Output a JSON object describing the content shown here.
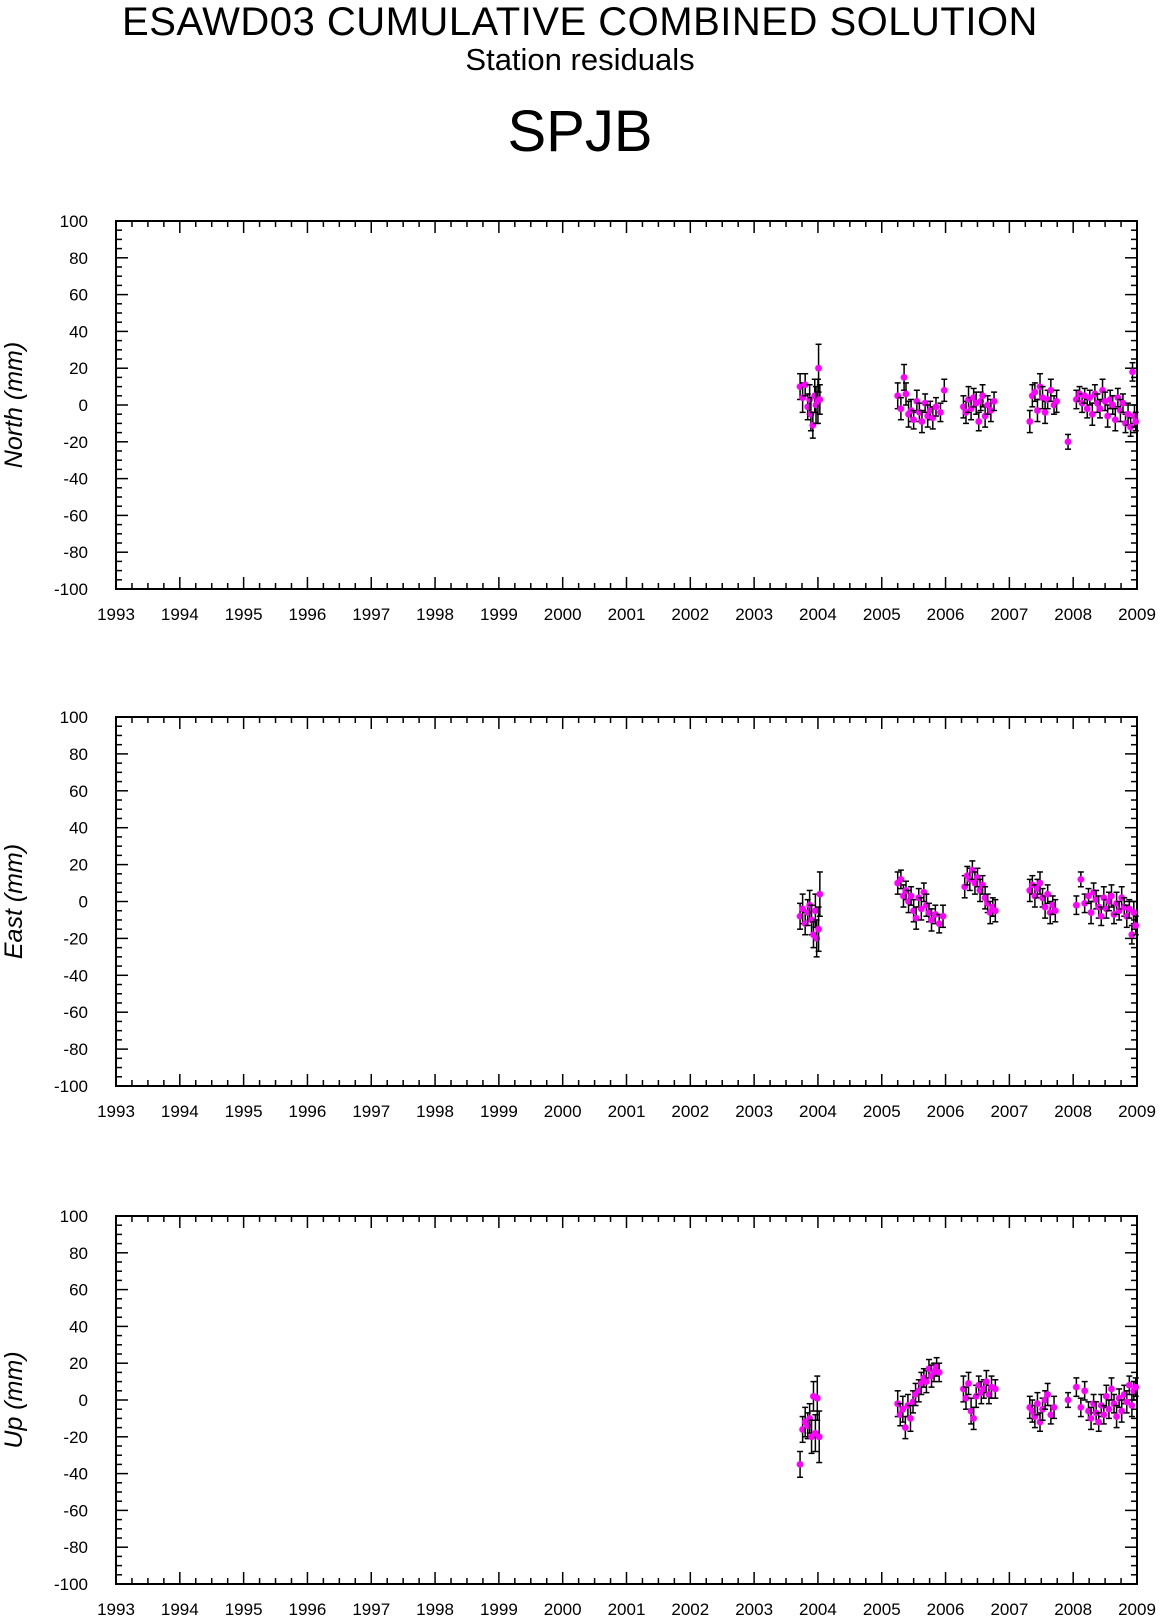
{
  "figure": {
    "title": "ESAWD03 CUMULATIVE COMBINED SOLUTION",
    "subtitle": "Station residuals",
    "station": "SPJB"
  },
  "colors": {
    "marker": "#ff00ff",
    "errorbar": "#000000",
    "axis": "#000000",
    "background": "#ffffff"
  },
  "chart_data": [
    {
      "type": "scatter",
      "name": "north",
      "ylabel": "North (mm)",
      "xlim": [
        1993,
        2009
      ],
      "ylim": [
        -100,
        100
      ],
      "x_ticks": [
        "1993",
        "1994",
        "1995",
        "1996",
        "1997",
        "1998",
        "1999",
        "2000",
        "2001",
        "2002",
        "2003",
        "2004",
        "2005",
        "2006",
        "2007",
        "2008",
        "2009"
      ],
      "y_ticks": [
        "100",
        "80",
        "60",
        "40",
        "20",
        "0",
        "-20",
        "-40",
        "-60",
        "-80",
        "-100"
      ],
      "grid": false,
      "error_bars": true,
      "points": [
        [
          2003.72,
          10,
          7
        ],
        [
          2003.76,
          4,
          8
        ],
        [
          2003.8,
          11,
          6
        ],
        [
          2003.84,
          -1,
          7
        ],
        [
          2003.87,
          3,
          8
        ],
        [
          2003.89,
          -5,
          9
        ],
        [
          2003.92,
          -11,
          7
        ],
        [
          2003.95,
          5,
          9
        ],
        [
          2003.97,
          0,
          10
        ],
        [
          2004.0,
          2,
          12
        ],
        [
          2004.01,
          20,
          13
        ],
        [
          2004.03,
          3,
          8
        ],
        [
          2005.25,
          5,
          7
        ],
        [
          2005.3,
          -2,
          6
        ],
        [
          2005.35,
          15,
          7
        ],
        [
          2005.38,
          6,
          6
        ],
        [
          2005.42,
          -5,
          7
        ],
        [
          2005.46,
          -3,
          6
        ],
        [
          2005.5,
          -8,
          5
        ],
        [
          2005.55,
          2,
          6
        ],
        [
          2005.59,
          -4,
          5
        ],
        [
          2005.63,
          -9,
          6
        ],
        [
          2005.68,
          1,
          5
        ],
        [
          2005.72,
          -6,
          6
        ],
        [
          2005.76,
          -3,
          5
        ],
        [
          2005.8,
          -7,
          6
        ],
        [
          2005.85,
          -1,
          5
        ],
        [
          2005.92,
          -4,
          5
        ],
        [
          2005.98,
          8,
          6
        ],
        [
          2006.28,
          -1,
          6
        ],
        [
          2006.32,
          -4,
          6
        ],
        [
          2006.36,
          3,
          7
        ],
        [
          2006.4,
          -2,
          6
        ],
        [
          2006.44,
          4,
          5
        ],
        [
          2006.48,
          1,
          6
        ],
        [
          2006.52,
          -9,
          5
        ],
        [
          2006.55,
          2,
          5
        ],
        [
          2006.58,
          5,
          6
        ],
        [
          2006.62,
          -6,
          6
        ],
        [
          2006.66,
          0,
          5
        ],
        [
          2006.71,
          -3,
          6
        ],
        [
          2006.76,
          2,
          5
        ],
        [
          2007.32,
          -9,
          6
        ],
        [
          2007.36,
          5,
          6
        ],
        [
          2007.4,
          7,
          5
        ],
        [
          2007.44,
          -3,
          6
        ],
        [
          2007.48,
          10,
          7
        ],
        [
          2007.52,
          4,
          6
        ],
        [
          2007.56,
          -4,
          6
        ],
        [
          2007.6,
          3,
          5
        ],
        [
          2007.65,
          8,
          6
        ],
        [
          2007.7,
          0,
          5
        ],
        [
          2007.74,
          2,
          6
        ],
        [
          2007.92,
          -20,
          4
        ],
        [
          2008.05,
          3,
          5
        ],
        [
          2008.1,
          6,
          4
        ],
        [
          2008.14,
          1,
          5
        ],
        [
          2008.18,
          5,
          4
        ],
        [
          2008.22,
          -2,
          5
        ],
        [
          2008.26,
          4,
          4
        ],
        [
          2008.3,
          -5,
          6
        ],
        [
          2008.34,
          6,
          5
        ],
        [
          2008.38,
          1,
          5
        ],
        [
          2008.42,
          -2,
          5
        ],
        [
          2008.46,
          8,
          6
        ],
        [
          2008.5,
          2,
          5
        ],
        [
          2008.54,
          -6,
          6
        ],
        [
          2008.58,
          3,
          5
        ],
        [
          2008.62,
          0,
          5
        ],
        [
          2008.66,
          -8,
          6
        ],
        [
          2008.7,
          4,
          5
        ],
        [
          2008.74,
          -3,
          6
        ],
        [
          2008.78,
          1,
          5
        ],
        [
          2008.82,
          -10,
          5
        ],
        [
          2008.86,
          -5,
          6
        ],
        [
          2008.9,
          -12,
          5
        ],
        [
          2008.93,
          18,
          5
        ],
        [
          2008.96,
          -6,
          6
        ],
        [
          2008.98,
          -9,
          5
        ]
      ]
    },
    {
      "type": "scatter",
      "name": "east",
      "ylabel": "East (mm)",
      "xlim": [
        1993,
        2009
      ],
      "ylim": [
        -100,
        100
      ],
      "x_ticks": [
        "1993",
        "1994",
        "1995",
        "1996",
        "1997",
        "1998",
        "1999",
        "2000",
        "2001",
        "2002",
        "2003",
        "2004",
        "2005",
        "2006",
        "2007",
        "2008",
        "2009"
      ],
      "y_ticks": [
        "100",
        "80",
        "60",
        "40",
        "20",
        "0",
        "-20",
        "-40",
        "-60",
        "-80",
        "-100"
      ],
      "grid": false,
      "error_bars": true,
      "points": [
        [
          2003.72,
          -8,
          7
        ],
        [
          2003.76,
          -4,
          8
        ],
        [
          2003.8,
          -12,
          6
        ],
        [
          2003.84,
          -6,
          7
        ],
        [
          2003.87,
          -2,
          8
        ],
        [
          2003.9,
          -10,
          8
        ],
        [
          2003.93,
          -18,
          7
        ],
        [
          2003.96,
          -5,
          9
        ],
        [
          2003.98,
          -20,
          10
        ],
        [
          2004.01,
          -15,
          12
        ],
        [
          2004.03,
          4,
          12
        ],
        [
          2005.25,
          10,
          6
        ],
        [
          2005.3,
          12,
          5
        ],
        [
          2005.34,
          3,
          6
        ],
        [
          2005.38,
          6,
          5
        ],
        [
          2005.42,
          0,
          6
        ],
        [
          2005.46,
          3,
          5
        ],
        [
          2005.5,
          -5,
          6
        ],
        [
          2005.54,
          -9,
          6
        ],
        [
          2005.58,
          2,
          5
        ],
        [
          2005.62,
          -4,
          6
        ],
        [
          2005.66,
          5,
          5
        ],
        [
          2005.7,
          -2,
          6
        ],
        [
          2005.74,
          -6,
          5
        ],
        [
          2005.78,
          -10,
          6
        ],
        [
          2005.84,
          -7,
          5
        ],
        [
          2005.9,
          -12,
          5
        ],
        [
          2005.96,
          -8,
          6
        ],
        [
          2006.3,
          8,
          6
        ],
        [
          2006.34,
          14,
          5
        ],
        [
          2006.38,
          12,
          6
        ],
        [
          2006.42,
          17,
          5
        ],
        [
          2006.46,
          10,
          6
        ],
        [
          2006.5,
          13,
          5
        ],
        [
          2006.54,
          6,
          6
        ],
        [
          2006.58,
          9,
          5
        ],
        [
          2006.62,
          2,
          6
        ],
        [
          2006.66,
          -1,
          5
        ],
        [
          2006.7,
          -6,
          6
        ],
        [
          2006.74,
          -3,
          5
        ],
        [
          2006.78,
          -5,
          6
        ],
        [
          2007.32,
          6,
          6
        ],
        [
          2007.36,
          9,
          5
        ],
        [
          2007.4,
          3,
          6
        ],
        [
          2007.44,
          7,
          5
        ],
        [
          2007.48,
          10,
          6
        ],
        [
          2007.52,
          2,
          5
        ],
        [
          2007.56,
          -3,
          6
        ],
        [
          2007.6,
          4,
          5
        ],
        [
          2007.64,
          -6,
          6
        ],
        [
          2007.68,
          -2,
          5
        ],
        [
          2007.72,
          -5,
          6
        ],
        [
          2008.05,
          -2,
          5
        ],
        [
          2008.12,
          12,
          4
        ],
        [
          2008.18,
          -1,
          5
        ],
        [
          2008.24,
          3,
          4
        ],
        [
          2008.28,
          -6,
          6
        ],
        [
          2008.32,
          5,
          5
        ],
        [
          2008.36,
          1,
          5
        ],
        [
          2008.4,
          -3,
          6
        ],
        [
          2008.44,
          -8,
          5
        ],
        [
          2008.48,
          2,
          6
        ],
        [
          2008.52,
          -4,
          5
        ],
        [
          2008.56,
          0,
          5
        ],
        [
          2008.6,
          3,
          6
        ],
        [
          2008.64,
          -7,
          5
        ],
        [
          2008.68,
          -1,
          6
        ],
        [
          2008.72,
          -5,
          5
        ],
        [
          2008.76,
          2,
          6
        ],
        [
          2008.8,
          -3,
          5
        ],
        [
          2008.84,
          -8,
          6
        ],
        [
          2008.88,
          -4,
          5
        ],
        [
          2008.92,
          -18,
          5
        ],
        [
          2008.95,
          -6,
          6
        ],
        [
          2008.98,
          -13,
          5
        ]
      ]
    },
    {
      "type": "scatter",
      "name": "up",
      "ylabel": "Up (mm)",
      "xlim": [
        1993,
        2009
      ],
      "ylim": [
        -100,
        100
      ],
      "x_ticks": [
        "1993",
        "1994",
        "1995",
        "1996",
        "1997",
        "1998",
        "1999",
        "2000",
        "2001",
        "2002",
        "2003",
        "2004",
        "2005",
        "2006",
        "2007",
        "2008",
        "2009"
      ],
      "y_ticks": [
        "100",
        "80",
        "60",
        "40",
        "20",
        "0",
        "-20",
        "-40",
        "-60",
        "-80",
        "-100"
      ],
      "grid": false,
      "error_bars": true,
      "points": [
        [
          2003.72,
          -35,
          7
        ],
        [
          2003.76,
          -16,
          7
        ],
        [
          2003.8,
          -12,
          8
        ],
        [
          2003.84,
          -14,
          7
        ],
        [
          2003.87,
          -10,
          8
        ],
        [
          2003.9,
          -20,
          9
        ],
        [
          2003.93,
          2,
          8
        ],
        [
          2003.96,
          -18,
          10
        ],
        [
          2003.99,
          1,
          12
        ],
        [
          2004.02,
          -20,
          14
        ],
        [
          2005.25,
          -2,
          7
        ],
        [
          2005.29,
          -8,
          6
        ],
        [
          2005.33,
          -5,
          7
        ],
        [
          2005.37,
          -15,
          6
        ],
        [
          2005.41,
          -3,
          6
        ],
        [
          2005.45,
          -10,
          7
        ],
        [
          2005.49,
          -1,
          6
        ],
        [
          2005.53,
          3,
          6
        ],
        [
          2005.58,
          5,
          6
        ],
        [
          2005.62,
          9,
          6
        ],
        [
          2005.66,
          12,
          5
        ],
        [
          2005.7,
          10,
          6
        ],
        [
          2005.74,
          17,
          5
        ],
        [
          2005.78,
          13,
          6
        ],
        [
          2005.82,
          15,
          5
        ],
        [
          2005.86,
          18,
          5
        ],
        [
          2005.9,
          15,
          5
        ],
        [
          2006.28,
          6,
          7
        ],
        [
          2006.32,
          1,
          6
        ],
        [
          2006.36,
          9,
          6
        ],
        [
          2006.4,
          -6,
          7
        ],
        [
          2006.44,
          -10,
          6
        ],
        [
          2006.48,
          2,
          6
        ],
        [
          2006.52,
          8,
          5
        ],
        [
          2006.56,
          4,
          6
        ],
        [
          2006.6,
          6,
          5
        ],
        [
          2006.64,
          10,
          6
        ],
        [
          2006.68,
          3,
          5
        ],
        [
          2006.72,
          7,
          6
        ],
        [
          2006.78,
          6,
          5
        ],
        [
          2007.32,
          -4,
          6
        ],
        [
          2007.36,
          -6,
          6
        ],
        [
          2007.4,
          -9,
          6
        ],
        [
          2007.44,
          -2,
          6
        ],
        [
          2007.48,
          -12,
          5
        ],
        [
          2007.52,
          -5,
          6
        ],
        [
          2007.56,
          0,
          5
        ],
        [
          2007.6,
          3,
          6
        ],
        [
          2007.65,
          -8,
          5
        ],
        [
          2007.7,
          -4,
          6
        ],
        [
          2007.92,
          0,
          4
        ],
        [
          2008.05,
          7,
          5
        ],
        [
          2008.12,
          -4,
          5
        ],
        [
          2008.18,
          5,
          5
        ],
        [
          2008.24,
          -6,
          5
        ],
        [
          2008.28,
          -10,
          6
        ],
        [
          2008.32,
          -2,
          5
        ],
        [
          2008.36,
          -7,
          6
        ],
        [
          2008.4,
          -12,
          5
        ],
        [
          2008.44,
          -3,
          6
        ],
        [
          2008.48,
          -8,
          5
        ],
        [
          2008.52,
          2,
          6
        ],
        [
          2008.56,
          -5,
          5
        ],
        [
          2008.6,
          6,
          6
        ],
        [
          2008.64,
          -2,
          5
        ],
        [
          2008.68,
          -9,
          6
        ],
        [
          2008.72,
          1,
          5
        ],
        [
          2008.76,
          -6,
          6
        ],
        [
          2008.8,
          3,
          5
        ],
        [
          2008.84,
          -1,
          6
        ],
        [
          2008.88,
          8,
          5
        ],
        [
          2008.92,
          -3,
          6
        ],
        [
          2008.95,
          5,
          5
        ],
        [
          2008.98,
          7,
          5
        ]
      ]
    }
  ]
}
